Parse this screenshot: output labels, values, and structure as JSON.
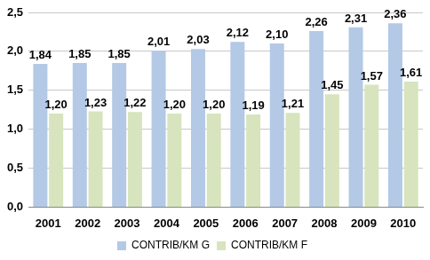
{
  "chart_data": {
    "type": "bar",
    "categories": [
      "2001",
      "2002",
      "2003",
      "2004",
      "2005",
      "2006",
      "2007",
      "2008",
      "2009",
      "2010"
    ],
    "series": [
      {
        "name": "CONTRIB/KM G",
        "color": "#b3c9e6",
        "values": [
          1.84,
          1.85,
          1.85,
          2.01,
          2.03,
          2.12,
          2.1,
          2.26,
          2.31,
          2.36
        ],
        "value_labels": [
          "1,84",
          "1,85",
          "1,85",
          "2,01",
          "2,03",
          "2,12",
          "2,10",
          "2,26",
          "2,31",
          "2,36"
        ]
      },
      {
        "name": "CONTRIB/KM F",
        "color": "#d7e4bd",
        "values": [
          1.2,
          1.23,
          1.22,
          1.2,
          1.2,
          1.19,
          1.21,
          1.45,
          1.57,
          1.61
        ],
        "value_labels": [
          "1,20",
          "1,23",
          "1,22",
          "1,20",
          "1,20",
          "1,19",
          "1,21",
          "1,45",
          "1,57",
          "1,61"
        ]
      }
    ],
    "ylim": [
      0,
      2.5
    ],
    "yticks": [
      {
        "value": 0,
        "label": "0,0"
      },
      {
        "value": 0.5,
        "label": "0,5"
      },
      {
        "value": 1,
        "label": "1,0"
      },
      {
        "value": 1.5,
        "label": "1,5"
      },
      {
        "value": 2,
        "label": "2,0"
      },
      {
        "value": 2.5,
        "label": "2,5"
      }
    ],
    "grid": true,
    "legend": "bottom",
    "data_labels": true
  }
}
